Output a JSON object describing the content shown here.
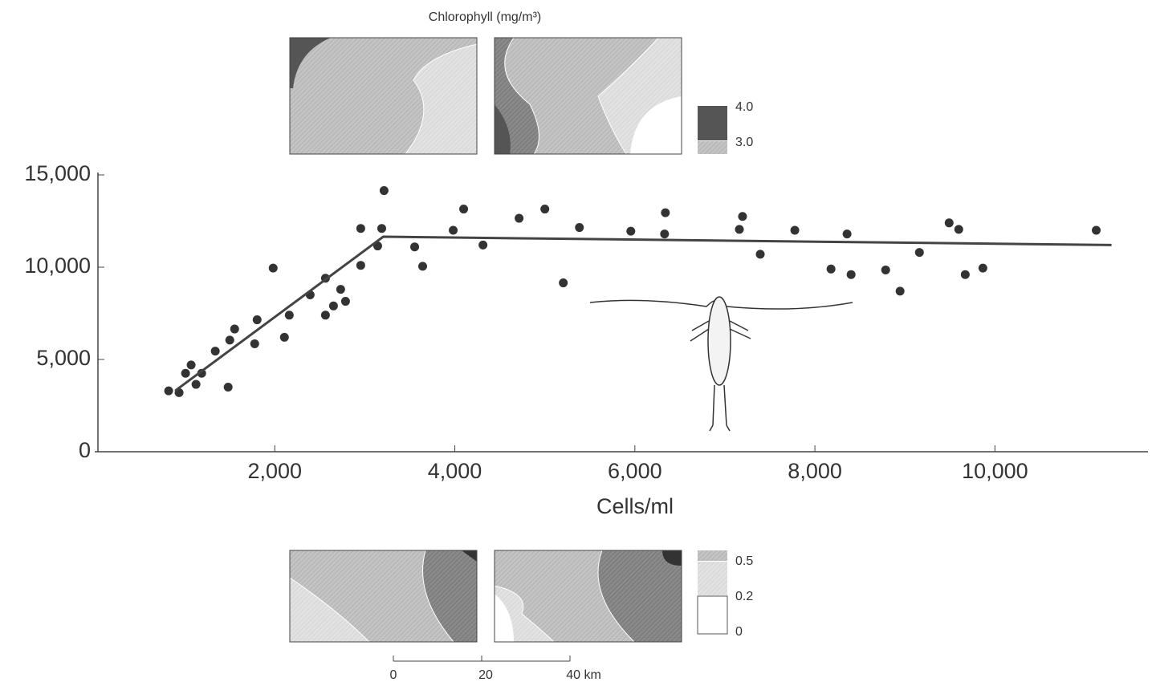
{
  "chart_data": {
    "type": "scatter",
    "xlabel": "Cells/ml",
    "xlim": [
      0,
      11700
    ],
    "ylim": [
      0,
      15000
    ],
    "xticks": [
      {
        "value": 2000,
        "label": "2,000"
      },
      {
        "value": 4000,
        "label": "4,000"
      },
      {
        "value": 6000,
        "label": "6,000"
      },
      {
        "value": 8000,
        "label": "8,000"
      },
      {
        "value": 10000,
        "label": "10,000"
      }
    ],
    "yticks": [
      0,
      {
        "value": 5000,
        "label": "5,000"
      },
      {
        "value": 10000,
        "label": "10,000"
      },
      {
        "value": 15000,
        "label": "15,000"
      }
    ],
    "series": [
      {
        "type": "scatter",
        "color": "#333333",
        "x": [
          821,
          937,
          1009,
          1071,
          1125,
          1188,
          1339,
          1482,
          1500,
          1554,
          1777,
          1804,
          1982,
          2107,
          2161,
          2393,
          2563,
          2563,
          2652,
          2732,
          2786,
          2955,
          2955,
          3143,
          3188,
          3214,
          3554,
          3643,
          3982,
          4098,
          4313,
          4714,
          5000,
          5205,
          5384,
          5955,
          6339,
          6330,
          7161,
          7196,
          7393,
          7777,
          8179,
          8357,
          8402,
          8786,
          8946,
          9161,
          9491,
          9598,
          9670,
          9866,
          11125
        ],
        "values": [
          3300,
          3200,
          4250,
          4700,
          3650,
          4250,
          5450,
          3500,
          6050,
          6650,
          5850,
          7150,
          9950,
          6200,
          7400,
          8500,
          9400,
          7400,
          7900,
          8800,
          8150,
          12100,
          10100,
          11150,
          12100,
          14150,
          11100,
          10050,
          12000,
          13150,
          11200,
          12650,
          13150,
          9150,
          12150,
          11950,
          12950,
          11800,
          12050,
          12750,
          10700,
          12000,
          9900,
          11800,
          9600,
          9850,
          8700,
          10800,
          12400,
          12050,
          9600,
          9950,
          12000
        ]
      },
      {
        "type": "line",
        "color": "#444444",
        "x": [
          893,
          3205,
          11295
        ],
        "values": [
          3300,
          11650,
          11200
        ]
      }
    ]
  },
  "maps": {
    "title": "Chlorophyll (mg/m³)",
    "top_legend": [
      "4.0",
      "3.0"
    ],
    "bottom_legend": [
      "0.5",
      "0.2",
      "0"
    ],
    "scale_labels": [
      "0",
      "20",
      "40 km"
    ]
  }
}
